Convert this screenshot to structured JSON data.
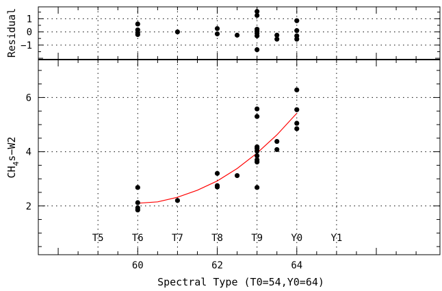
{
  "chart_data": [
    {
      "type": "scatter",
      "title": "",
      "xlabel": "",
      "ylabel": "Residual",
      "ytick_labels": [
        "−1",
        "0",
        "1"
      ],
      "yticks": [
        -1,
        0,
        1
      ],
      "xlim": [
        57.5,
        67.6
      ],
      "ylim": [
        -2.1,
        1.9
      ],
      "grid": "dotted",
      "series": [
        {
          "points": [
            [
              60,
              0.6
            ],
            [
              60,
              0.15
            ],
            [
              60,
              -0.05
            ],
            [
              60,
              -0.2
            ],
            [
              61,
              0.0
            ],
            [
              62,
              0.25
            ],
            [
              62,
              -0.15
            ],
            [
              62.5,
              -0.25
            ],
            [
              63,
              1.55
            ],
            [
              63,
              1.25
            ],
            [
              63,
              0.2
            ],
            [
              63,
              0.05
            ],
            [
              63,
              -0.1
            ],
            [
              63,
              -0.3
            ],
            [
              63,
              -1.35
            ],
            [
              63.5,
              -0.25
            ],
            [
              63.5,
              -0.55
            ],
            [
              64,
              0.85
            ],
            [
              64,
              0.1
            ],
            [
              64,
              -0.3
            ],
            [
              64,
              -0.55
            ]
          ]
        }
      ]
    },
    {
      "type": "scatter",
      "title": "",
      "xlabel": "Spectral Type (T0=54,Y0=64)",
      "ylabel": "CH4s−W2",
      "ylabel_main": "CH",
      "ylabel_sub": "4",
      "ylabel_rest": "s−W2",
      "xlim": [
        57.5,
        67.6
      ],
      "ylim": [
        0.2,
        7.4
      ],
      "xticks": [
        60,
        62,
        64
      ],
      "xtick_labels": [
        "60",
        "62",
        "64"
      ],
      "yticks": [
        2,
        4,
        6
      ],
      "ytick_labels": [
        "2",
        "4",
        "6"
      ],
      "grid": "dotted",
      "spectral_type_labels": [
        {
          "label": "T5",
          "x": 59
        },
        {
          "label": "T6",
          "x": 60
        },
        {
          "label": "T7",
          "x": 61
        },
        {
          "label": "T8",
          "x": 62
        },
        {
          "label": "T9",
          "x": 63
        },
        {
          "label": "Y0",
          "x": 64
        },
        {
          "label": "Y1",
          "x": 65
        }
      ],
      "series": [
        {
          "points": [
            [
              60,
              2.68
            ],
            [
              60,
              2.12
            ],
            [
              60,
              1.93
            ],
            [
              60,
              1.85
            ],
            [
              61,
              2.2
            ],
            [
              62,
              3.2
            ],
            [
              62,
              2.75
            ],
            [
              62,
              2.7
            ],
            [
              62.5,
              3.12
            ],
            [
              63,
              5.58
            ],
            [
              63,
              5.3
            ],
            [
              63,
              4.18
            ],
            [
              63,
              4.12
            ],
            [
              63,
              4.02
            ],
            [
              63,
              3.85
            ],
            [
              63,
              3.7
            ],
            [
              63,
              3.62
            ],
            [
              63,
              2.68
            ],
            [
              63.5,
              4.38
            ],
            [
              63.5,
              4.08
            ],
            [
              64,
              6.28
            ],
            [
              64,
              5.55
            ],
            [
              64,
              5.05
            ],
            [
              64,
              4.85
            ]
          ]
        },
        {
          "type": "line",
          "color": "#ff0000",
          "x": [
            60,
            60.5,
            61,
            61.5,
            62,
            62.5,
            63,
            63.5,
            64
          ],
          "y": [
            2.1,
            2.15,
            2.32,
            2.58,
            2.92,
            3.38,
            3.95,
            4.62,
            5.42
          ]
        }
      ]
    }
  ]
}
